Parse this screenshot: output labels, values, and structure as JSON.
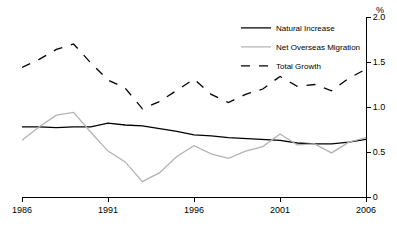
{
  "chart_data": {
    "type": "line",
    "y_label": "%",
    "x": [
      1986,
      1987,
      1988,
      1989,
      1990,
      1991,
      1992,
      1993,
      1994,
      1995,
      1996,
      1997,
      1998,
      1999,
      2000,
      2001,
      2002,
      2003,
      2004,
      2005,
      2006
    ],
    "series": [
      {
        "name": "Natural Increase",
        "color": "#000000",
        "line_style": "solid",
        "values": [
          0.78,
          0.78,
          0.77,
          0.78,
          0.78,
          0.82,
          0.8,
          0.79,
          0.76,
          0.73,
          0.69,
          0.68,
          0.66,
          0.65,
          0.64,
          0.63,
          0.6,
          0.59,
          0.59,
          0.61,
          0.64
        ]
      },
      {
        "name": "Net Overseas Migration",
        "color": "#b3b3b3",
        "line_style": "solid",
        "values": [
          0.63,
          0.78,
          0.91,
          0.94,
          0.72,
          0.51,
          0.39,
          0.17,
          0.27,
          0.45,
          0.57,
          0.48,
          0.43,
          0.51,
          0.56,
          0.7,
          0.58,
          0.59,
          0.49,
          0.61,
          0.66
        ]
      },
      {
        "name": "Total Growth",
        "color": "#000000",
        "line_style": "dash",
        "values": [
          1.44,
          1.53,
          1.64,
          1.7,
          1.49,
          1.3,
          1.21,
          0.98,
          1.06,
          1.19,
          1.31,
          1.14,
          1.05,
          1.14,
          1.2,
          1.34,
          1.23,
          1.25,
          1.18,
          1.32,
          1.42
        ]
      }
    ],
    "xlim": [
      1986,
      2006
    ],
    "xticks": [
      1986,
      1991,
      1996,
      2001,
      2006
    ],
    "ylim": [
      0,
      2.0
    ],
    "yticks": [
      0,
      0.5,
      {
        "value": 1.0,
        "label": "1.0"
      },
      {
        "value": 1.5,
        "label": "1.5"
      },
      {
        "value": 2.0,
        "label": "2.0"
      }
    ],
    "grid": false,
    "legend": "top-right"
  }
}
